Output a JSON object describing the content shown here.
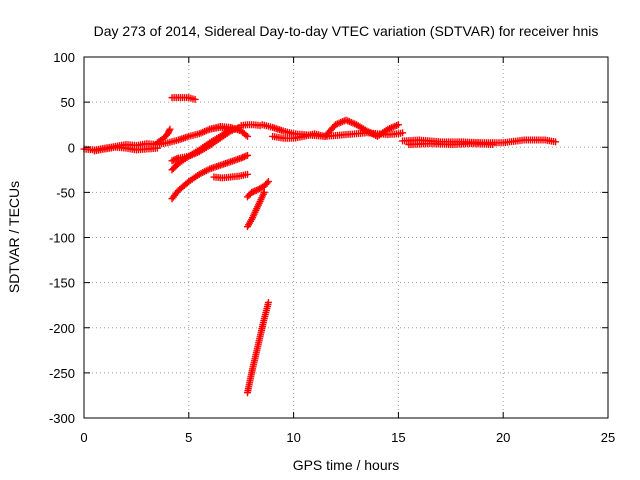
{
  "chart_data": {
    "type": "scatter",
    "title": "Day 273 of 2014, Sidereal Day-to-day VTEC variation (SDTVAR) for receiver hnis",
    "xlabel": "GPS time / hours",
    "ylabel": "SDTVAR / TECUs",
    "xlim": [
      0,
      25
    ],
    "ylim": [
      -300,
      100
    ],
    "xticks": [
      0,
      5,
      10,
      15,
      20,
      25
    ],
    "yticks": [
      100,
      50,
      0,
      -50,
      -100,
      -150,
      -200,
      -250,
      -300
    ],
    "grid": true,
    "marker": "+",
    "colors": {
      "series": "#ff0000",
      "axis": "#000000",
      "grid": "#a0a0a0"
    },
    "series": [
      {
        "x": [
          0.0,
          0.5,
          1.0,
          1.5,
          2.0,
          2.5,
          3.0,
          3.5,
          4.0,
          4.5,
          5.0,
          5.5,
          6.0,
          6.5,
          7.0
        ],
        "y": [
          -2,
          -3,
          -1,
          1,
          3,
          2,
          4,
          3,
          5,
          8,
          12,
          15,
          20,
          22,
          20
        ]
      },
      {
        "x": [
          0.5,
          1.0,
          1.5,
          2.0,
          2.5,
          3.0,
          3.5
        ],
        "y": [
          -4,
          -2,
          0,
          -1,
          -3,
          -2,
          -1
        ]
      },
      {
        "x": [
          3.5,
          3.8,
          4.0,
          4.1
        ],
        "y": [
          5,
          10,
          15,
          20
        ]
      },
      {
        "x": [
          4.2,
          4.5,
          5.0,
          5.3
        ],
        "y": [
          55,
          55,
          55,
          53
        ]
      },
      {
        "x": [
          4.2,
          4.5,
          5.0,
          5.5,
          6.0,
          6.5,
          7.0
        ],
        "y": [
          -25,
          -18,
          -10,
          -3,
          5,
          12,
          20
        ]
      },
      {
        "x": [
          4.2,
          4.5,
          5.0,
          5.5,
          6.0,
          6.5,
          7.0,
          7.4
        ],
        "y": [
          -15,
          -12,
          -10,
          -5,
          2,
          10,
          18,
          22
        ]
      },
      {
        "x": [
          4.2,
          4.5,
          5.0,
          5.5,
          6.0,
          6.5,
          7.0,
          7.5,
          7.8
        ],
        "y": [
          -57,
          -48,
          -38,
          -30,
          -24,
          -20,
          -16,
          -12,
          -9
        ]
      },
      {
        "x": [
          6.0,
          6.5,
          7.0,
          7.5,
          7.8
        ],
        "y": [
          20,
          23,
          22,
          18,
          12
        ]
      },
      {
        "x": [
          6.2,
          6.6,
          7.0,
          7.4,
          7.8
        ],
        "y": [
          -33,
          -34,
          -33,
          -32,
          -30
        ]
      },
      {
        "x": [
          7.5,
          7.8,
          8.1,
          8.4
        ],
        "y": [
          24,
          25,
          25,
          24
        ]
      },
      {
        "x": [
          7.8,
          8.0,
          8.2,
          8.4,
          8.6
        ],
        "y": [
          -88,
          -80,
          -70,
          -60,
          -50
        ]
      },
      {
        "x": [
          7.8,
          8.0,
          8.3,
          8.6,
          8.8
        ],
        "y": [
          -55,
          -50,
          -47,
          -43,
          -38
        ]
      },
      {
        "x": [
          7.8,
          8.0,
          8.2,
          8.4,
          8.6,
          8.8
        ],
        "y": [
          -272,
          -250,
          -230,
          -210,
          -190,
          -172
        ]
      },
      {
        "x": [
          8.5,
          9.0,
          9.5,
          10.0,
          10.5,
          11.0,
          11.5,
          12.0,
          12.5,
          13.0,
          13.5,
          14.0,
          14.5,
          15.0,
          15.2
        ],
        "y": [
          25,
          22,
          18,
          15,
          14,
          13,
          12,
          13,
          14,
          15,
          16,
          15,
          14,
          15,
          16
        ]
      },
      {
        "x": [
          9.0,
          9.5,
          10.0,
          10.5,
          11.0,
          11.5,
          12.0,
          12.5,
          13.0,
          13.5,
          14.0,
          14.5,
          15.0
        ],
        "y": [
          12,
          10,
          10,
          12,
          15,
          12,
          25,
          30,
          25,
          18,
          12,
          20,
          25
        ]
      },
      {
        "x": [
          15.2,
          16.0,
          17.0,
          18.0,
          19.0,
          20.0,
          21.0,
          22.0,
          22.5
        ],
        "y": [
          7,
          8,
          6,
          6,
          5,
          5,
          8,
          8,
          6
        ]
      },
      {
        "x": [
          15.5,
          16.5,
          17.5,
          18.5,
          19.5
        ],
        "y": [
          3,
          4,
          3,
          4,
          3
        ]
      }
    ]
  }
}
